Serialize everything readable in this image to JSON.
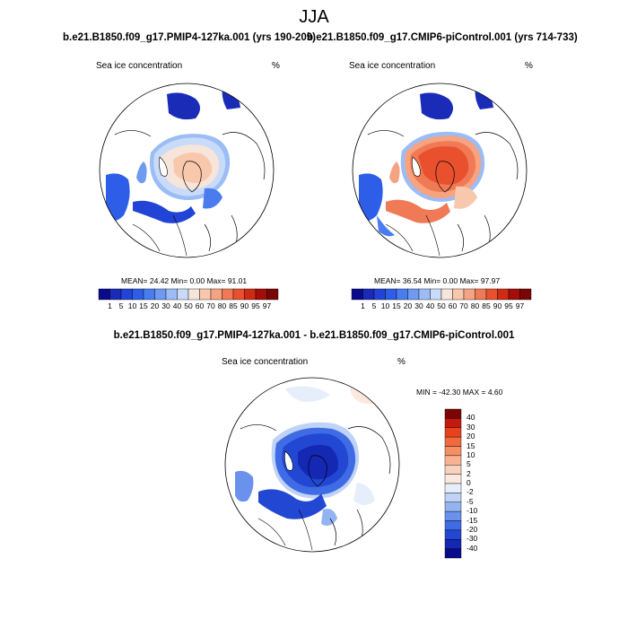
{
  "figure": {
    "title": "JJA"
  },
  "panels": [
    {
      "title": "b.e21.B1850.f09_g17.PMIP4-127ka.001 (yrs 190-209)",
      "left_label": "Sea ice concentration",
      "right_label": "%",
      "stats_text": "MEAN=  24.42  Min=   0.00  Max=  91.01",
      "stats": {
        "mean": 24.42,
        "min": 0.0,
        "max": 91.01
      }
    },
    {
      "title": "b.e21.B1850.f09_g17.CMIP6-piControl.001 (yrs 714-733)",
      "left_label": "Sea ice concentration",
      "right_label": "%",
      "stats_text": "MEAN=  36.54  Min=   0.00  Max=  97.97",
      "stats": {
        "mean": 36.54,
        "min": 0.0,
        "max": 97.97
      }
    },
    {
      "title": "b.e21.B1850.f09_g17.PMIP4-127ka.001 - b.e21.B1850.f09_g17.CMIP6-piControl.001",
      "left_label": "Sea ice concentration",
      "right_label": "%",
      "stats_text": "MIN = -42.30 MAX =   4.60",
      "stats": {
        "min": -42.3,
        "max": 4.6
      }
    }
  ],
  "colorbar_abs": {
    "labels": [
      "1",
      "5",
      "10",
      "15",
      "20",
      "30",
      "40",
      "50",
      "60",
      "70",
      "80",
      "85",
      "90",
      "95",
      "97"
    ],
    "colors": [
      "#0a0a8c",
      "#1a2bb8",
      "#2244d6",
      "#2e5ee8",
      "#4a7cf0",
      "#6e9af2",
      "#9bbcf5",
      "#c8dbf8",
      "#f7e4da",
      "#f8c8ad",
      "#f5a483",
      "#f07a55",
      "#e8502e",
      "#cf2a14",
      "#a30d0a",
      "#7a0505"
    ]
  },
  "colorbar_diff": {
    "labels": [
      "40",
      "30",
      "20",
      "15",
      "10",
      "5",
      "2",
      "0",
      "-2",
      "-5",
      "-10",
      "-15",
      "-20",
      "-30",
      "-40"
    ],
    "colors": [
      "#7a0505",
      "#c21a0c",
      "#e8421c",
      "#f06a3e",
      "#f58f65",
      "#f8b291",
      "#f9d2bd",
      "#fbe9df",
      "#e6eefb",
      "#bfd3f6",
      "#93b4f1",
      "#6a92ec",
      "#3f6ce4",
      "#2247d2",
      "#1428b4",
      "#0a0a8c"
    ]
  }
}
